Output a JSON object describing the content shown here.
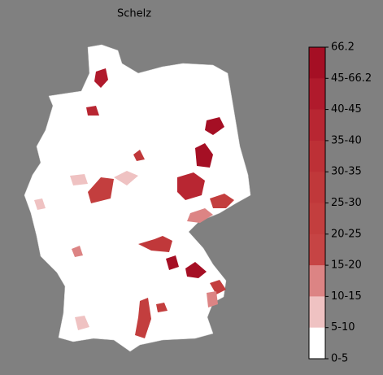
{
  "map": {
    "title": "Schelz",
    "legend": {
      "labels": [
        "66.2",
        "45-66.2",
        "40-45",
        "35-40",
        "30-35",
        "25-30",
        "20-25",
        "15-20",
        "10-15",
        "5-10",
        "0-5"
      ],
      "colors": [
        "#a50f24",
        "#b01a2c",
        "#b82632",
        "#bd3036",
        "#c0383a",
        "#c33e3e",
        "#c64444",
        "#dc8484",
        "#efc2c2",
        "#ffffff"
      ]
    }
  }
}
